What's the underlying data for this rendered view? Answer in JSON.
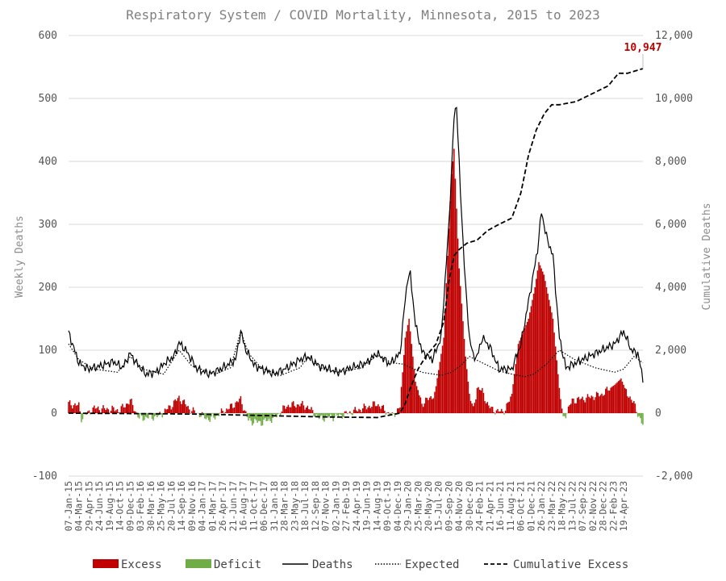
{
  "chart_data": {
    "type": "line",
    "title": "Respiratory System / COVID Mortality, Minnesota, 2015 to 2023",
    "ylabel": "Weekly Deaths",
    "y2label": "Cumulative Deaths",
    "ylim": [
      -100,
      600
    ],
    "y_ticks": [
      -100,
      0,
      100,
      200,
      300,
      400,
      500,
      600
    ],
    "y_tick_labels": [
      "-100",
      "0",
      "100",
      "200",
      "300",
      "400",
      "500",
      "600"
    ],
    "y2lim": [
      -2000,
      12000
    ],
    "y2_ticks": [
      -2000,
      0,
      2000,
      4000,
      6000,
      8000,
      10000,
      12000
    ],
    "y2_tick_labels": [
      "-2,000",
      "0",
      "2,000",
      "4,000",
      "6,000",
      "8,000",
      "10,000",
      "12,000"
    ],
    "x_tick_labels": [
      "07-Jan-15",
      "04-Mar-15",
      "29-Apr-15",
      "24-Jun-15",
      "19-Aug-15",
      "14-Oct-15",
      "09-Dec-15",
      "03-Feb-16",
      "30-Mar-16",
      "25-May-16",
      "20-Jul-16",
      "14-Sep-16",
      "09-Nov-16",
      "04-Jan-17",
      "01-Mar-17",
      "26-Apr-17",
      "21-Jun-17",
      "16-Aug-17",
      "11-Oct-17",
      "06-Dec-17",
      "31-Jan-18",
      "28-Mar-18",
      "23-May-18",
      "18-Jul-18",
      "12-Sep-18",
      "07-Nov-18",
      "02-Jan-19",
      "27-Feb-19",
      "24-Apr-19",
      "19-Jun-19",
      "14-Aug-19",
      "09-Oct-19",
      "04-Dec-19",
      "29-Jan-20",
      "25-Mar-20",
      "20-May-20",
      "15-Jul-20",
      "09-Sep-20",
      "04-Nov-20",
      "30-Dec-20",
      "24-Feb-21",
      "21-Apr-21",
      "16-Jun-21",
      "11-Aug-21",
      "06-Oct-21",
      "01-Dec-21",
      "26-Jan-22",
      "23-Mar-22",
      "18-May-22",
      "13-Jul-22",
      "07-Sep-22",
      "02-Nov-22",
      "28-Dec-22",
      "22-Feb-23",
      "19-Apr-23"
    ],
    "grid": true,
    "legend_position": "bottom",
    "legend": [
      "Excess",
      "Deficit",
      "Deaths",
      "Expected",
      "Cumulative Excess"
    ],
    "annotation": "10,947",
    "colors": {
      "excess": "#c00000",
      "deficit": "#70ad47",
      "line": "#000000",
      "grid": "#d9d9d9"
    },
    "deaths_keypoints": [
      [
        0,
        128
      ],
      [
        5,
        98
      ],
      [
        8,
        80
      ],
      [
        15,
        70
      ],
      [
        25,
        75
      ],
      [
        35,
        82
      ],
      [
        42,
        72
      ],
      [
        48,
        95
      ],
      [
        52,
        82
      ],
      [
        60,
        62
      ],
      [
        68,
        65
      ],
      [
        75,
        80
      ],
      [
        82,
        90
      ],
      [
        86,
        112
      ],
      [
        92,
        98
      ],
      [
        100,
        70
      ],
      [
        110,
        62
      ],
      [
        120,
        72
      ],
      [
        130,
        85
      ],
      [
        134,
        130
      ],
      [
        138,
        100
      ],
      [
        145,
        75
      ],
      [
        160,
        62
      ],
      [
        170,
        72
      ],
      [
        180,
        85
      ],
      [
        186,
        90
      ],
      [
        195,
        75
      ],
      [
        210,
        65
      ],
      [
        220,
        72
      ],
      [
        232,
        80
      ],
      [
        240,
        95
      ],
      [
        250,
        78
      ],
      [
        258,
        95
      ],
      [
        262,
        180
      ],
      [
        264,
        215
      ],
      [
        266,
        220
      ],
      [
        270,
        140
      ],
      [
        275,
        98
      ],
      [
        283,
        85
      ],
      [
        290,
        120
      ],
      [
        296,
        300
      ],
      [
        300,
        470
      ],
      [
        302,
        490
      ],
      [
        305,
        350
      ],
      [
        309,
        200
      ],
      [
        312,
        120
      ],
      [
        315,
        90
      ],
      [
        318,
        90
      ],
      [
        322,
        120
      ],
      [
        328,
        105
      ],
      [
        335,
        70
      ],
      [
        345,
        70
      ],
      [
        352,
        110
      ],
      [
        360,
        200
      ],
      [
        365,
        260
      ],
      [
        368,
        320
      ],
      [
        372,
        280
      ],
      [
        377,
        250
      ],
      [
        382,
        120
      ],
      [
        387,
        72
      ],
      [
        395,
        80
      ],
      [
        405,
        90
      ],
      [
        415,
        100
      ],
      [
        425,
        110
      ],
      [
        432,
        130
      ],
      [
        438,
        100
      ],
      [
        443,
        95
      ],
      [
        447,
        55
      ]
    ],
    "expected_keypoints": [
      [
        0,
        110
      ],
      [
        8,
        85
      ],
      [
        20,
        70
      ],
      [
        38,
        65
      ],
      [
        48,
        90
      ],
      [
        58,
        70
      ],
      [
        74,
        62
      ],
      [
        86,
        100
      ],
      [
        96,
        75
      ],
      [
        114,
        62
      ],
      [
        126,
        72
      ],
      [
        134,
        130
      ],
      [
        140,
        95
      ],
      [
        150,
        72
      ],
      [
        165,
        60
      ],
      [
        180,
        72
      ],
      [
        186,
        88
      ],
      [
        196,
        72
      ],
      [
        210,
        65
      ],
      [
        228,
        72
      ],
      [
        240,
        92
      ],
      [
        252,
        80
      ],
      [
        260,
        78
      ],
      [
        275,
        65
      ],
      [
        290,
        60
      ],
      [
        298,
        65
      ],
      [
        305,
        75
      ],
      [
        312,
        90
      ],
      [
        322,
        80
      ],
      [
        335,
        67
      ],
      [
        345,
        62
      ],
      [
        355,
        58
      ],
      [
        362,
        62
      ],
      [
        372,
        78
      ],
      [
        382,
        100
      ],
      [
        394,
        85
      ],
      [
        410,
        72
      ],
      [
        425,
        65
      ],
      [
        432,
        70
      ],
      [
        440,
        90
      ],
      [
        447,
        80
      ]
    ],
    "cumulative_keypoints": [
      [
        0,
        0
      ],
      [
        100,
        -30
      ],
      [
        200,
        -120
      ],
      [
        240,
        -140
      ],
      [
        258,
        0
      ],
      [
        262,
        300
      ],
      [
        266,
        800
      ],
      [
        272,
        1400
      ],
      [
        278,
        1800
      ],
      [
        286,
        2200
      ],
      [
        292,
        2900
      ],
      [
        296,
        4200
      ],
      [
        300,
        5000
      ],
      [
        304,
        5200
      ],
      [
        310,
        5400
      ],
      [
        318,
        5500
      ],
      [
        326,
        5800
      ],
      [
        335,
        6000
      ],
      [
        345,
        6200
      ],
      [
        352,
        7000
      ],
      [
        358,
        8200
      ],
      [
        364,
        9000
      ],
      [
        370,
        9500
      ],
      [
        376,
        9800
      ],
      [
        382,
        9800
      ],
      [
        395,
        9900
      ],
      [
        410,
        10200
      ],
      [
        420,
        10400
      ],
      [
        428,
        10800
      ],
      [
        435,
        10800
      ],
      [
        447,
        10947
      ]
    ],
    "excess_keypoints": [
      [
        0,
        15
      ],
      [
        8,
        12
      ],
      [
        10,
        -8
      ],
      [
        20,
        8
      ],
      [
        40,
        5
      ],
      [
        48,
        20
      ],
      [
        55,
        -8
      ],
      [
        70,
        -5
      ],
      [
        80,
        12
      ],
      [
        86,
        25
      ],
      [
        95,
        5
      ],
      [
        110,
        -10
      ],
      [
        125,
        8
      ],
      [
        134,
        22
      ],
      [
        140,
        -12
      ],
      [
        150,
        -15
      ],
      [
        160,
        -8
      ],
      [
        170,
        12
      ],
      [
        180,
        14
      ],
      [
        186,
        10
      ],
      [
        195,
        -8
      ],
      [
        210,
        -5
      ],
      [
        225,
        5
      ],
      [
        240,
        15
      ],
      [
        252,
        -5
      ],
      [
        258,
        10
      ],
      [
        262,
        120
      ],
      [
        265,
        150
      ],
      [
        270,
        50
      ],
      [
        275,
        15
      ],
      [
        285,
        30
      ],
      [
        292,
        120
      ],
      [
        298,
        380
      ],
      [
        300,
        420
      ],
      [
        304,
        230
      ],
      [
        309,
        90
      ],
      [
        312,
        30
      ],
      [
        315,
        5
      ],
      [
        318,
        40
      ],
      [
        322,
        35
      ],
      [
        327,
        10
      ],
      [
        334,
        2
      ],
      [
        340,
        5
      ],
      [
        345,
        30
      ],
      [
        350,
        110
      ],
      [
        358,
        150
      ],
      [
        363,
        200
      ],
      [
        366,
        240
      ],
      [
        370,
        220
      ],
      [
        377,
        150
      ],
      [
        382,
        40
      ],
      [
        385,
        -10
      ],
      [
        392,
        20
      ],
      [
        405,
        25
      ],
      [
        415,
        30
      ],
      [
        425,
        45
      ],
      [
        430,
        55
      ],
      [
        434,
        35
      ],
      [
        440,
        15
      ],
      [
        447,
        -20
      ]
    ]
  }
}
